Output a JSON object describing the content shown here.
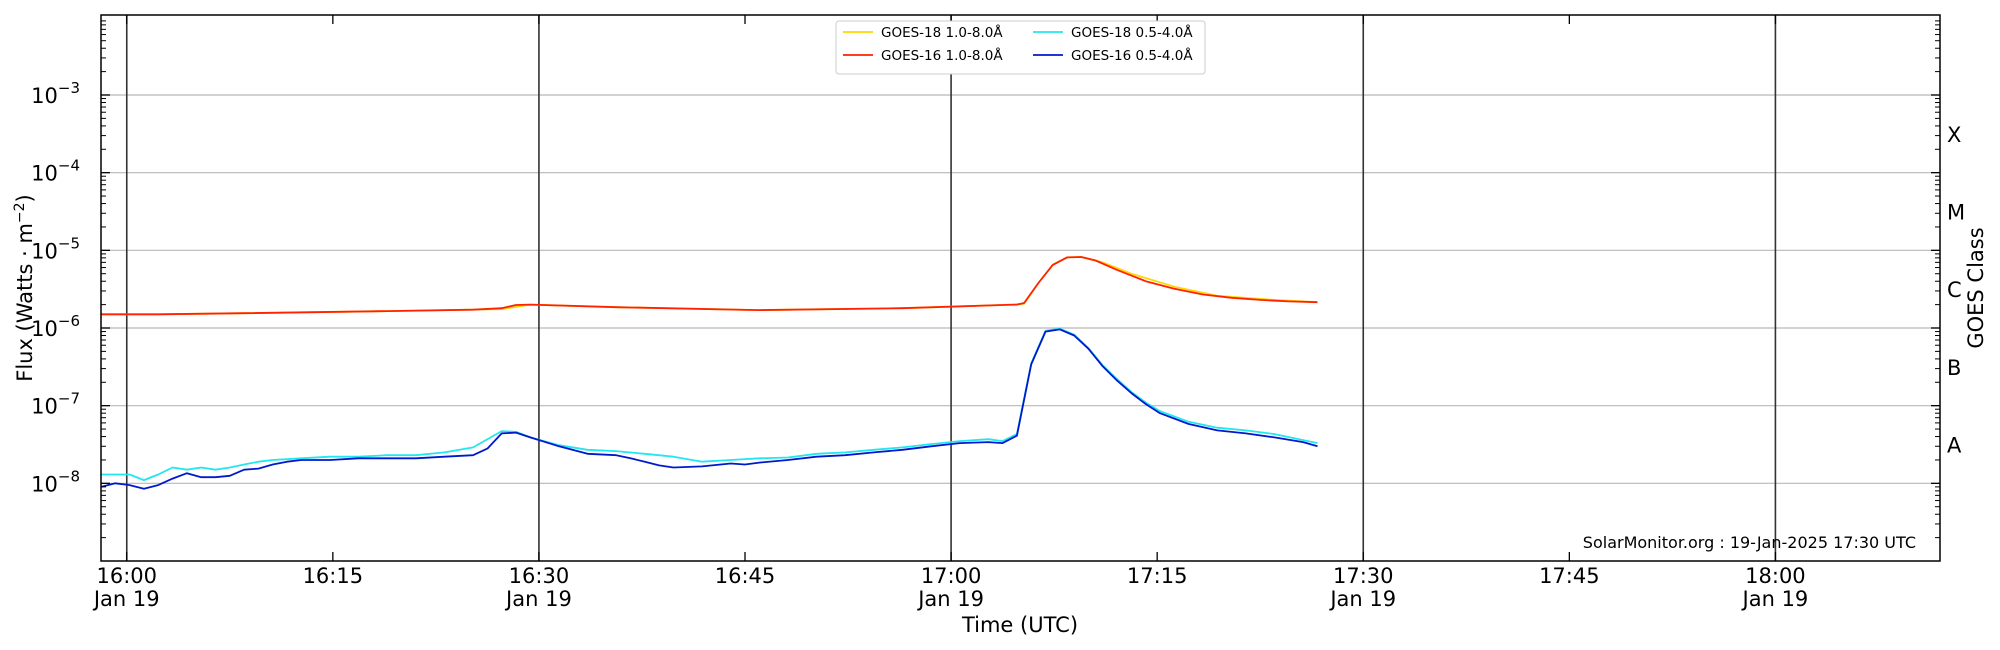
{
  "chart_data": {
    "type": "line",
    "xlabel": "Time (UTC)",
    "ylabel_main": "Flux (Watts · m",
    "ylabel_sup": "−2",
    "ylabel_close": ")",
    "right_label": "GOES Class",
    "credit": "SolarMonitor.org : 19-Jan-2025 17:30 UTC",
    "x_unit": "minutes after 15:56 UTC, 19-Jan-2025",
    "xlim": [
      0,
      128.5
    ],
    "ylim_log10": [
      -9.0,
      -1.97
    ],
    "y_scale": "log",
    "grid": "horizontal at each decade; vertical dark lines at each half hour",
    "legend_placement": "top-center",
    "x_ticks": [
      {
        "x": 1.8,
        "line1": "16:00",
        "line2": "Jan 19",
        "major": true
      },
      {
        "x": 16.2,
        "line1": "16:15",
        "line2": "",
        "major": false
      },
      {
        "x": 30.6,
        "line1": "16:30",
        "line2": "Jan 19",
        "major": true
      },
      {
        "x": 45.0,
        "line1": "16:45",
        "line2": "",
        "major": false
      },
      {
        "x": 59.4,
        "line1": "17:00",
        "line2": "Jan 19",
        "major": true
      },
      {
        "x": 73.8,
        "line1": "17:15",
        "line2": "",
        "major": false
      },
      {
        "x": 88.2,
        "line1": "17:30",
        "line2": "Jan 19",
        "major": true
      },
      {
        "x": 102.6,
        "line1": "17:45",
        "line2": "",
        "major": false
      },
      {
        "x": 117.0,
        "line1": "18:00",
        "line2": "Jan 19",
        "major": true
      }
    ],
    "y_ticks": [
      {
        "exp": -8,
        "base": "10",
        "sup": "−8"
      },
      {
        "exp": -7,
        "base": "10",
        "sup": "−7"
      },
      {
        "exp": -6,
        "base": "10",
        "sup": "−6"
      },
      {
        "exp": -5,
        "base": "10",
        "sup": "−5"
      },
      {
        "exp": -4,
        "base": "10",
        "sup": "−4"
      },
      {
        "exp": -3,
        "base": "10",
        "sup": "−3"
      }
    ],
    "class_labels": [
      {
        "label": "A",
        "exp": -7.5
      },
      {
        "label": "B",
        "exp": -6.5
      },
      {
        "label": "C",
        "exp": -5.5
      },
      {
        "label": "M",
        "exp": -4.5
      },
      {
        "label": "X",
        "exp": -3.5
      }
    ],
    "legend": [
      {
        "label": "GOES-18 1.0-8.0Å",
        "color": "#ffd700"
      },
      {
        "label": "GOES-16 1.0-8.0Å",
        "color": "#ff2200"
      },
      {
        "label": "GOES-18 0.5-4.0Å",
        "color": "#22e6f0"
      },
      {
        "label": "GOES-16 0.5-4.0Å",
        "color": "#0019cc"
      }
    ],
    "series": [
      {
        "name": "GOES-18 1.0-8.0Å",
        "color": "#ffd700",
        "x": [
          0,
          4,
          10,
          20,
          28,
          30,
          36,
          46,
          56,
          63,
          64.5,
          65.5,
          66.5,
          67.5,
          68.5,
          70,
          72,
          75,
          78,
          82,
          85
        ],
        "y": [
          1.5e-06,
          1.5e-06,
          1.55e-06,
          1.65e-06,
          1.75e-06,
          2e-06,
          1.85e-06,
          1.7e-06,
          1.8e-06,
          1.98e-06,
          2.05e-06,
          3.8e-06,
          6.5e-06,
          8.1e-06,
          8.2e-06,
          7e-06,
          5e-06,
          3.4e-06,
          2.6e-06,
          2.3e-06,
          2.15e-06
        ]
      },
      {
        "name": "GOES-16 1.0-8.0Å",
        "color": "#ff2200",
        "x": [
          0,
          4,
          10,
          20,
          26,
          28,
          29,
          30,
          36,
          46,
          56,
          63,
          64,
          64.5,
          65.5,
          66.5,
          67.5,
          68.5,
          69.5,
          71,
          73,
          75,
          77,
          79,
          81,
          83,
          85
        ],
        "y": [
          1.5e-06,
          1.5e-06,
          1.55e-06,
          1.65e-06,
          1.72e-06,
          1.8e-06,
          1.98e-06,
          2e-06,
          1.85e-06,
          1.7e-06,
          1.8e-06,
          1.98e-06,
          2e-06,
          2.1e-06,
          3.8e-06,
          6.5e-06,
          8.1e-06,
          8.2e-06,
          7.4e-06,
          5.6e-06,
          4e-06,
          3.2e-06,
          2.7e-06,
          2.45e-06,
          2.3e-06,
          2.2e-06,
          2.15e-06
        ]
      },
      {
        "name": "GOES-18 0.5-4.0Å",
        "color": "#22e6f0",
        "x": [
          0,
          2,
          3,
          4,
          5,
          6,
          7,
          8,
          9,
          10,
          11,
          12,
          14,
          16,
          18,
          20,
          22,
          24,
          26,
          28,
          29,
          30,
          32,
          34,
          36,
          38,
          40,
          42,
          44,
          46,
          48,
          50,
          52,
          54,
          56,
          58,
          60,
          62,
          63,
          64,
          65,
          66,
          67,
          68,
          69,
          70,
          71,
          72,
          73,
          74,
          76,
          78,
          80,
          82,
          85
        ],
        "y": [
          1.3e-08,
          1.3e-08,
          1.1e-08,
          1.3e-08,
          1.6e-08,
          1.5e-08,
          1.6e-08,
          1.5e-08,
          1.6e-08,
          1.75e-08,
          1.9e-08,
          2e-08,
          2.1e-08,
          2.2e-08,
          2.2e-08,
          2.3e-08,
          2.3e-08,
          2.5e-08,
          2.9e-08,
          4.7e-08,
          4.6e-08,
          3.9e-08,
          3.1e-08,
          2.7e-08,
          2.6e-08,
          2.4e-08,
          2.2e-08,
          1.9e-08,
          2e-08,
          2.1e-08,
          2.15e-08,
          2.4e-08,
          2.5e-08,
          2.7e-08,
          2.9e-08,
          3.2e-08,
          3.5e-08,
          3.7e-08,
          3.5e-08,
          4.3e-08,
          3.5e-07,
          9.2e-07,
          9.8e-07,
          8.2e-07,
          5.5e-07,
          3.3e-07,
          2.2e-07,
          1.5e-07,
          1.1e-07,
          8.5e-08,
          6.2e-08,
          5.2e-08,
          4.8e-08,
          4.3e-08,
          3.3e-08
        ]
      },
      {
        "name": "GOES-16 0.5-4.0Å",
        "color": "#0019cc",
        "x": [
          0,
          1,
          2,
          3,
          4,
          5,
          6,
          7,
          8,
          9,
          10,
          11,
          12,
          13,
          14,
          16,
          18,
          20,
          22,
          24,
          26,
          27,
          28,
          29,
          30,
          32,
          34,
          36,
          37,
          38,
          39,
          40,
          42,
          44,
          45,
          46,
          48,
          50,
          52,
          54,
          56,
          58,
          60,
          62,
          63,
          64,
          65,
          66,
          67,
          68,
          69,
          70,
          71,
          72,
          73,
          74,
          76,
          78,
          80,
          82,
          84,
          85
        ],
        "y": [
          9e-09,
          1e-08,
          9.5e-09,
          8.5e-09,
          9.5e-09,
          1.15e-08,
          1.35e-08,
          1.2e-08,
          1.2e-08,
          1.25e-08,
          1.5e-08,
          1.55e-08,
          1.75e-08,
          1.9e-08,
          2e-08,
          2e-08,
          2.1e-08,
          2.1e-08,
          2.1e-08,
          2.2e-08,
          2.3e-08,
          2.8e-08,
          4.4e-08,
          4.5e-08,
          3.9e-08,
          3e-08,
          2.4e-08,
          2.3e-08,
          2.1e-08,
          1.9e-08,
          1.7e-08,
          1.6e-08,
          1.65e-08,
          1.8e-08,
          1.75e-08,
          1.85e-08,
          2e-08,
          2.2e-08,
          2.3e-08,
          2.5e-08,
          2.7e-08,
          3e-08,
          3.3e-08,
          3.4e-08,
          3.3e-08,
          4.1e-08,
          3.4e-07,
          9e-07,
          9.6e-07,
          8e-07,
          5.4e-07,
          3.2e-07,
          2.1e-07,
          1.45e-07,
          1.05e-07,
          8e-08,
          5.8e-08,
          4.8e-08,
          4.4e-08,
          3.9e-08,
          3.4e-08,
          3e-08
        ]
      }
    ]
  }
}
